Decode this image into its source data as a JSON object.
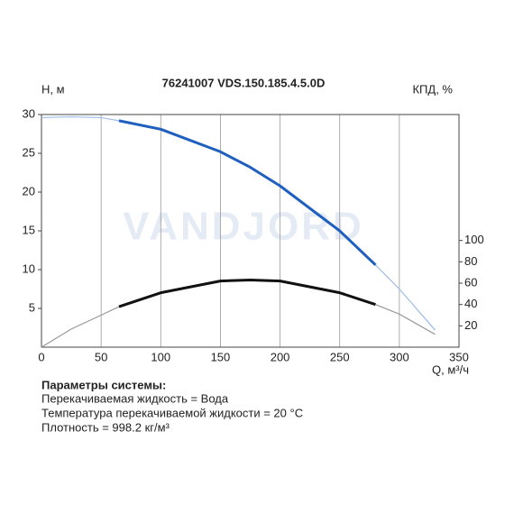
{
  "chart_data": {
    "type": "line",
    "title": "76241007 VDS.150.185.4.5.0D",
    "y_label": "Н, м",
    "y2_label": "КПД, %",
    "x_label": "Q, м³/ч",
    "watermark": "VANDJORD",
    "x": [
      0,
      25,
      50,
      65,
      100,
      150,
      175,
      200,
      250,
      280,
      300,
      330
    ],
    "series": [
      {
        "color": "#1f5fbf",
        "thin_color": "#9dbbe8",
        "values": [
          29.6,
          29.7,
          29.6,
          29.2,
          28.1,
          25.2,
          23.2,
          20.8,
          15,
          10.6,
          7.5,
          2.2
        ]
      },
      {
        "color": "#111111",
        "thin_color": "#999999",
        "axis": "y2",
        "values": [
          0,
          17,
          30,
          38,
          51,
          62,
          63,
          62,
          51,
          40,
          31,
          12
        ]
      }
    ],
    "highlight_range": [
      65,
      280
    ],
    "xlim": [
      0,
      350
    ],
    "xticks": [
      0,
      50,
      100,
      150,
      200,
      250,
      300,
      350
    ],
    "ylim": [
      0,
      30
    ],
    "yticks": [
      5,
      10,
      15,
      20,
      25,
      30
    ],
    "y2lim": [
      0,
      218
    ],
    "y2ticks": [
      20,
      40,
      60,
      80,
      100
    ],
    "grid": "x"
  },
  "notes": {
    "heading": "Параметры системы:",
    "lines": [
      "Перекачиваемая жидкость = Вода",
      "Температура перекачиваемой жидкости = 20 °C",
      "Плотность = 998.2 кг/м³"
    ]
  }
}
